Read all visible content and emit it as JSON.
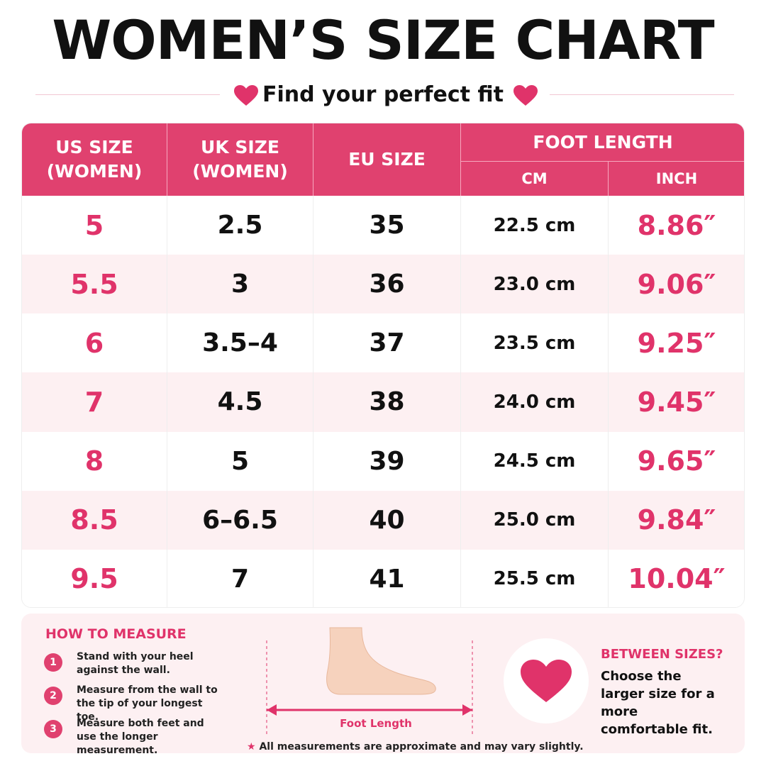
{
  "header": {
    "title": "WOMEN’S SIZE CHART",
    "subtitle": "Find your perfect fit"
  },
  "table": {
    "headers": [
      "US SIZE (WOMEN)",
      "UK SIZE (WOMEN)",
      "EU SIZE"
    ],
    "group_header": "FOOT LENGTH",
    "sub_headers": [
      "CM",
      "INCH"
    ],
    "rows": [
      [
        "5",
        "2.5",
        "35",
        "22.5 cm",
        "8.86″"
      ],
      [
        "5.5",
        "3",
        "36",
        "23.0 cm",
        "9.06″"
      ],
      [
        "6",
        "3.5–4",
        "37",
        "23.5 cm",
        "9.25″"
      ],
      [
        "7",
        "4.5",
        "38",
        "24.0 cm",
        "9.45″"
      ],
      [
        "8",
        "5",
        "39",
        "24.5 cm",
        "9.65″"
      ],
      [
        "8.5",
        "6–6.5",
        "40",
        "25.0 cm",
        "9.84″"
      ],
      [
        "9.5",
        "7",
        "41",
        "25.5 cm",
        "10.04″"
      ]
    ]
  },
  "how_to": {
    "title": "HOW TO MEASURE",
    "steps": [
      {
        "number": "1",
        "text": "Stand with your heel against the wall."
      },
      {
        "number": "2",
        "text": "Measure from the wall to the tip of your longest toe."
      },
      {
        "number": "3",
        "text": "Measure both feet and use the longer measurement."
      }
    ]
  },
  "diagram": {
    "label": "Foot Length"
  },
  "between": {
    "title": "BETWEEN SIZES?",
    "text": "Choose the larger size for a more comfortable fit."
  },
  "footnote": "All measurements are approximate and may vary slightly."
}
